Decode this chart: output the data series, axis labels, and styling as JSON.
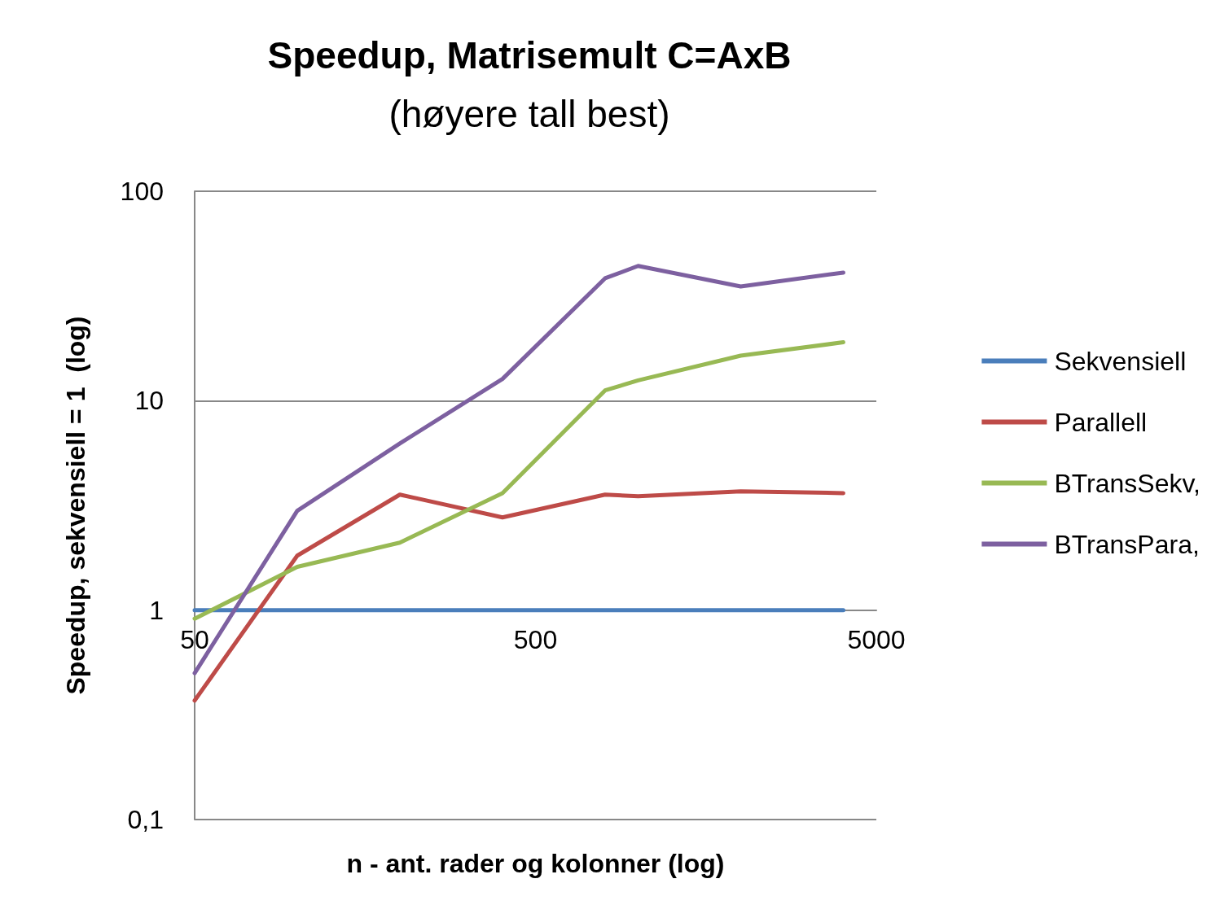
{
  "chart_data": {
    "type": "line",
    "title": "Speedup, Matrisemult C=AxB",
    "subtitle": "(høyere tall best)",
    "xlabel": "n - ant. rader og kolonner (log)",
    "ylabel": "Speedup, sekvensiell = 1  (log)",
    "x": [
      50,
      100,
      200,
      400,
      800,
      1000,
      2000,
      4000
    ],
    "series": [
      {
        "name": "Sekvensiell",
        "color": "#4a7ebb",
        "values": [
          1,
          1,
          1,
          1,
          1,
          1,
          1,
          1
        ]
      },
      {
        "name": "Parallell",
        "color": "#be4b48",
        "values": [
          0.37,
          1.82,
          3.56,
          2.77,
          3.56,
          3.5,
          3.69,
          3.62
        ]
      },
      {
        "name": "BTransSekv,",
        "color": "#98b954",
        "values": [
          0.91,
          1.61,
          2.1,
          3.62,
          11.2,
          12.5,
          16.4,
          19.0
        ]
      },
      {
        "name": "BTransPara,",
        "color": "#7d60a0",
        "values": [
          0.5,
          2.98,
          6.25,
          12.7,
          38.4,
          44,
          35.1,
          40.9
        ]
      }
    ],
    "log": "xy",
    "xlim": [
      50,
      5000
    ],
    "xticks": [
      50,
      500,
      5000
    ],
    "ylim": [
      0.1,
      100
    ],
    "yticks": [
      {
        "value": 0.1,
        "label": "0,1"
      },
      1,
      10,
      100
    ],
    "grid": "y",
    "legend": "right",
    "marker": "none",
    "line_style": "solid"
  }
}
